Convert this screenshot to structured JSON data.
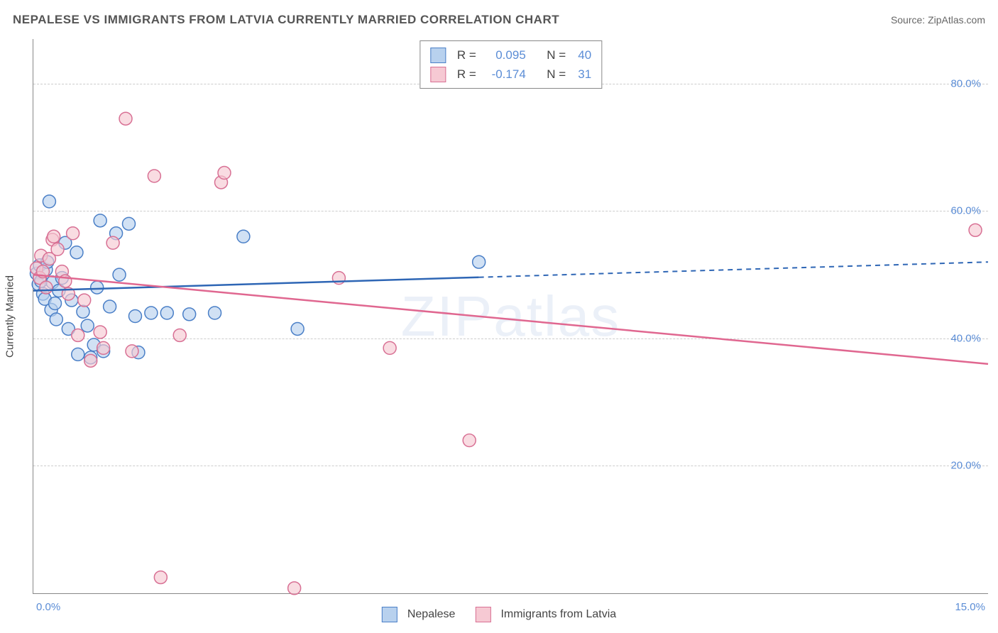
{
  "header": {
    "title": "NEPALESE VS IMMIGRANTS FROM LATVIA CURRENTLY MARRIED CORRELATION CHART",
    "source": "Source: ZipAtlas.com"
  },
  "ylabel": "Currently Married",
  "watermark": "ZIPatlas",
  "chart": {
    "type": "scatter",
    "x_range": [
      0,
      15
    ],
    "y_range": [
      0,
      87
    ],
    "background_color": "#ffffff",
    "grid_color": "#cccccc",
    "grid_dash": "4,4",
    "axis_color": "#888888",
    "axis_label_color": "#5b8dd6",
    "tick_fontsize": 15,
    "marker_radius": 9,
    "marker_stroke_width": 1.5,
    "line_width": 2.5,
    "y_gridlines": [
      20,
      40,
      60,
      80
    ],
    "y_tick_labels": [
      "20.0%",
      "40.0%",
      "60.0%",
      "80.0%"
    ],
    "x_ticks": [
      0,
      15
    ],
    "x_tick_labels": [
      "0.0%",
      "15.0%"
    ]
  },
  "series": [
    {
      "key": "nepalese",
      "label": "Nepalese",
      "fill": "#b8d1ee",
      "stroke": "#4a7fc7",
      "line_color": "#2e66b5",
      "line_solid_xmax": 7.0,
      "R": "0.095",
      "N": "40",
      "regression": {
        "x0": 0,
        "y0": 47.5,
        "x1": 15,
        "y1": 52.0
      },
      "points": [
        [
          0.05,
          50.2
        ],
        [
          0.08,
          48.5
        ],
        [
          0.1,
          51.5
        ],
        [
          0.12,
          49.0
        ],
        [
          0.15,
          47.0
        ],
        [
          0.18,
          46.2
        ],
        [
          0.2,
          50.8
        ],
        [
          0.22,
          52.0
        ],
        [
          0.25,
          61.5
        ],
        [
          0.28,
          44.5
        ],
        [
          0.3,
          48.8
        ],
        [
          0.34,
          45.5
        ],
        [
          0.36,
          43.0
        ],
        [
          0.4,
          47.5
        ],
        [
          0.45,
          49.5
        ],
        [
          0.5,
          55.0
        ],
        [
          0.55,
          41.5
        ],
        [
          0.6,
          46.0
        ],
        [
          0.68,
          53.5
        ],
        [
          0.7,
          37.5
        ],
        [
          0.78,
          44.2
        ],
        [
          0.85,
          42.0
        ],
        [
          0.9,
          37.0
        ],
        [
          0.95,
          39.0
        ],
        [
          1.0,
          48.0
        ],
        [
          1.05,
          58.5
        ],
        [
          1.1,
          38.0
        ],
        [
          1.2,
          45.0
        ],
        [
          1.3,
          56.5
        ],
        [
          1.35,
          50.0
        ],
        [
          1.5,
          58.0
        ],
        [
          1.6,
          43.5
        ],
        [
          1.65,
          37.8
        ],
        [
          1.85,
          44.0
        ],
        [
          2.1,
          44.0
        ],
        [
          2.45,
          43.8
        ],
        [
          2.85,
          44.0
        ],
        [
          3.3,
          56.0
        ],
        [
          4.15,
          41.5
        ],
        [
          7.0,
          52.0
        ]
      ]
    },
    {
      "key": "latvia",
      "label": "Immigrants from Latvia",
      "fill": "#f6c9d3",
      "stroke": "#d87094",
      "line_color": "#e06790",
      "line_solid_xmax": 15.0,
      "R": "-0.174",
      "N": "31",
      "regression": {
        "x0": 0,
        "y0": 50.0,
        "x1": 15,
        "y1": 36.0
      },
      "points": [
        [
          0.05,
          51.0
        ],
        [
          0.1,
          49.5
        ],
        [
          0.12,
          53.0
        ],
        [
          0.15,
          50.5
        ],
        [
          0.2,
          48.0
        ],
        [
          0.25,
          52.5
        ],
        [
          0.3,
          55.5
        ],
        [
          0.32,
          56.0
        ],
        [
          0.38,
          54.0
        ],
        [
          0.45,
          50.5
        ],
        [
          0.5,
          49.0
        ],
        [
          0.55,
          47.0
        ],
        [
          0.62,
          56.5
        ],
        [
          0.7,
          40.5
        ],
        [
          0.8,
          46.0
        ],
        [
          0.9,
          36.5
        ],
        [
          1.05,
          41.0
        ],
        [
          1.1,
          38.5
        ],
        [
          1.25,
          55.0
        ],
        [
          1.45,
          74.5
        ],
        [
          1.55,
          38.0
        ],
        [
          1.9,
          65.5
        ],
        [
          2.0,
          2.5
        ],
        [
          2.3,
          40.5
        ],
        [
          2.95,
          64.5
        ],
        [
          3.0,
          66.0
        ],
        [
          4.1,
          0.8
        ],
        [
          4.8,
          49.5
        ],
        [
          5.6,
          38.5
        ],
        [
          6.85,
          24.0
        ],
        [
          14.8,
          57.0
        ]
      ]
    }
  ],
  "legend": {
    "stats_label_r": "R =",
    "stats_label_n": "N ="
  }
}
